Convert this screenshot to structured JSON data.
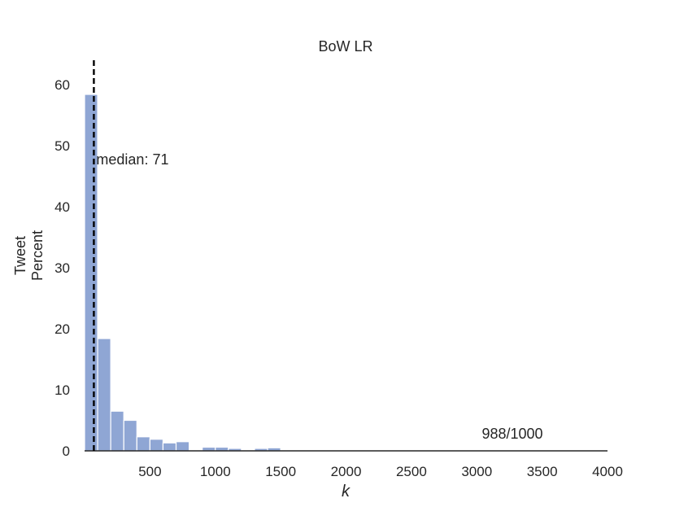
{
  "chart_data": {
    "type": "bar",
    "title": "BoW LR",
    "xlabel": "k",
    "ylabel_lines": [
      "Tweet",
      "Percent"
    ],
    "xlim": [
      0,
      4000
    ],
    "ylim": [
      0,
      64
    ],
    "xticks": [
      500,
      1000,
      1500,
      2000,
      2500,
      3000,
      3500,
      4000
    ],
    "yticks": [
      0,
      10,
      20,
      30,
      40,
      50,
      60
    ],
    "bin_width": 100,
    "bins": [
      {
        "x0": 0,
        "value": 58.4
      },
      {
        "x0": 100,
        "value": 18.4
      },
      {
        "x0": 200,
        "value": 6.5
      },
      {
        "x0": 300,
        "value": 5.0
      },
      {
        "x0": 400,
        "value": 2.3
      },
      {
        "x0": 500,
        "value": 1.9
      },
      {
        "x0": 600,
        "value": 1.3
      },
      {
        "x0": 700,
        "value": 1.5
      },
      {
        "x0": 800,
        "value": 0.1
      },
      {
        "x0": 900,
        "value": 0.6
      },
      {
        "x0": 1000,
        "value": 0.6
      },
      {
        "x0": 1100,
        "value": 0.4
      },
      {
        "x0": 1200,
        "value": 0.1
      },
      {
        "x0": 1300,
        "value": 0.4
      },
      {
        "x0": 1400,
        "value": 0.5
      },
      {
        "x0": 1500,
        "value": 0.15
      },
      {
        "x0": 1600,
        "value": 0.1
      },
      {
        "x0": 1700,
        "value": 0.1
      },
      {
        "x0": 1800,
        "value": 0.1
      },
      {
        "x0": 1900,
        "value": 0.1
      },
      {
        "x0": 2000,
        "value": 0.1
      },
      {
        "x0": 2100,
        "value": 0.1
      }
    ],
    "median": {
      "value": 71,
      "label": "median: 71"
    },
    "annotation": {
      "text": "988/1000"
    },
    "colors": {
      "bar": "#8fa6d4",
      "bar_edge": "#ffffff",
      "axis": "#262626",
      "median_line": "#000000"
    }
  }
}
